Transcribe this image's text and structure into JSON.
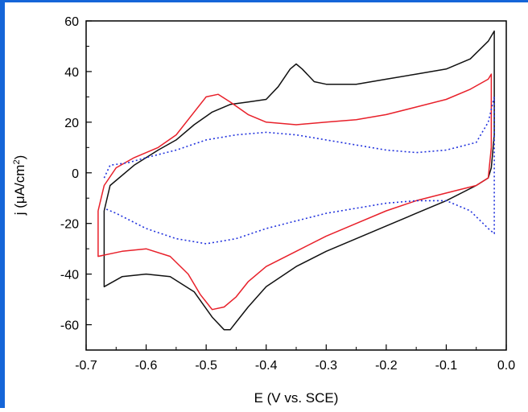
{
  "colors": {
    "frame_blue": "#1565d8",
    "series_black": "#111111",
    "series_red": "#e8202a",
    "series_blue": "#2233dd"
  },
  "chart_data": {
    "type": "line",
    "xlabel": "E (V vs. SCE)",
    "ylabel_prefix": "j (",
    "ylabel_mu": "μ",
    "ylabel_unit": "A/cm",
    "ylabel_sup": "2",
    "ylabel_suffix": ")",
    "xlim": [
      -0.7,
      0.0
    ],
    "ylim": [
      -70,
      60
    ],
    "x_ticks": [
      -0.7,
      -0.6,
      -0.5,
      -0.4,
      -0.3,
      -0.2,
      -0.1,
      0.0
    ],
    "x_tick_labels": [
      "-0.7",
      "-0.6",
      "-0.5",
      "-0.4",
      "-0.3",
      "-0.2",
      "-0.1",
      "0.0"
    ],
    "y_ticks": [
      60,
      40,
      20,
      0,
      -20,
      -40,
      -60
    ],
    "y_tick_labels": [
      "60",
      "40",
      "20",
      "0",
      "-20",
      "-40",
      "-60"
    ],
    "grid": false,
    "legend": "none",
    "series": [
      {
        "color": "#111111",
        "style": "solid",
        "x": [
          -0.67,
          -0.66,
          -0.62,
          -0.58,
          -0.55,
          -0.52,
          -0.49,
          -0.46,
          -0.43,
          -0.4,
          -0.38,
          -0.36,
          -0.35,
          -0.34,
          -0.32,
          -0.3,
          -0.25,
          -0.2,
          -0.15,
          -0.1,
          -0.06,
          -0.03,
          -0.02,
          -0.02,
          -0.025,
          -0.03,
          -0.05,
          -0.1,
          -0.15,
          -0.2,
          -0.25,
          -0.3,
          -0.35,
          -0.4,
          -0.43,
          -0.45,
          -0.46,
          -0.47,
          -0.49,
          -0.52,
          -0.56,
          -0.6,
          -0.64,
          -0.67,
          -0.67
        ],
        "y": [
          -15,
          -5,
          3,
          9,
          13,
          19,
          24,
          27,
          28,
          29,
          34,
          41,
          43,
          41,
          36,
          35,
          35,
          37,
          39,
          41,
          45,
          52,
          56,
          15,
          2,
          -2,
          -5,
          -11,
          -16,
          -21,
          -26,
          -31,
          -37,
          -45,
          -53,
          -59,
          -62,
          -62,
          -57,
          -47,
          -41,
          -40,
          -41,
          -45,
          -15
        ]
      },
      {
        "color": "#e8202a",
        "style": "solid",
        "x": [
          -0.68,
          -0.67,
          -0.65,
          -0.62,
          -0.58,
          -0.55,
          -0.52,
          -0.5,
          -0.48,
          -0.46,
          -0.43,
          -0.4,
          -0.35,
          -0.3,
          -0.25,
          -0.2,
          -0.15,
          -0.1,
          -0.06,
          -0.03,
          -0.025,
          -0.025,
          -0.03,
          -0.05,
          -0.1,
          -0.15,
          -0.2,
          -0.25,
          -0.3,
          -0.35,
          -0.4,
          -0.43,
          -0.45,
          -0.47,
          -0.49,
          -0.51,
          -0.53,
          -0.56,
          -0.6,
          -0.64,
          -0.68,
          -0.68
        ],
        "y": [
          -15,
          -5,
          2,
          6,
          10,
          15,
          24,
          30,
          31,
          28,
          23,
          20,
          19,
          20,
          21,
          23,
          26,
          29,
          33,
          37,
          39,
          10,
          -2,
          -5,
          -8,
          -11,
          -15,
          -20,
          -25,
          -31,
          -37,
          -43,
          -49,
          -53,
          -54,
          -48,
          -40,
          -33,
          -30,
          -31,
          -33,
          -15
        ]
      },
      {
        "color": "#2233dd",
        "style": "dotted",
        "x": [
          -0.67,
          -0.66,
          -0.63,
          -0.6,
          -0.55,
          -0.5,
          -0.45,
          -0.4,
          -0.35,
          -0.3,
          -0.25,
          -0.2,
          -0.15,
          -0.1,
          -0.05,
          -0.03,
          -0.02,
          -0.02,
          -0.03,
          -0.06,
          -0.1,
          -0.15,
          -0.2,
          -0.25,
          -0.3,
          -0.35,
          -0.4,
          -0.45,
          -0.5,
          -0.55,
          -0.6,
          -0.65,
          -0.67
        ],
        "y": [
          -2,
          3,
          4,
          6,
          9,
          13,
          15,
          16,
          15,
          13,
          11,
          9,
          8,
          9,
          12,
          20,
          30,
          -24,
          -22,
          -15,
          -11,
          -11,
          -12,
          -14,
          -16,
          -19,
          -22,
          -26,
          -28,
          -26,
          -22,
          -16,
          -14
        ]
      }
    ]
  }
}
